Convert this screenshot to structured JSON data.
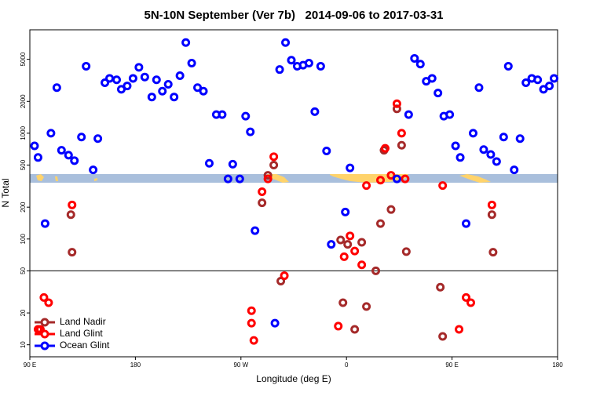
{
  "chart_data": {
    "type": "scatter",
    "title": "5N-10N September (Ver 7b)   2014-09-06 to 2017-03-31",
    "x_label": "Longitude (deg E)",
    "y_label": "N Total",
    "xlim": [
      -270,
      180
    ],
    "xticks": [
      {
        "value": -270,
        "label": "90 E"
      },
      {
        "value": -180,
        "label": "180"
      },
      {
        "value": -90,
        "label": "90 W"
      },
      0,
      {
        "value": 90,
        "label": "90 E"
      },
      180
    ],
    "ylim": [
      7.7,
      9500
    ],
    "log_y": true,
    "yticks": [
      10,
      20,
      50,
      100,
      200,
      500,
      1000,
      2000,
      5000
    ],
    "hline": 50,
    "legend": "lower left",
    "series": [
      {
        "name": "Land Nadir",
        "color": "#a52a2a",
        "x": [
          -235,
          -234,
          -72,
          -67,
          -62,
          -56,
          -5,
          -3,
          1,
          7,
          13,
          17,
          25,
          29,
          38,
          32,
          47,
          51,
          80,
          82,
          124,
          125,
          43
        ],
        "values": [
          170,
          75,
          220,
          400,
          500,
          40,
          98,
          25,
          89,
          14,
          93,
          23,
          50,
          140,
          190,
          690,
          770,
          76,
          35,
          12,
          170,
          75,
          1700
        ]
      },
      {
        "name": "Land Glint",
        "color": "#ff0000",
        "x": [
          -258,
          -254,
          -263,
          -261,
          -234,
          -81,
          -81,
          -79,
          -72,
          -67,
          -62,
          -53,
          -7,
          -2,
          3,
          7,
          13,
          17,
          29,
          33,
          38,
          43,
          47,
          50,
          82,
          96,
          102,
          106,
          124
        ],
        "values": [
          28,
          25,
          14,
          14,
          210,
          21,
          16,
          11,
          280,
          370,
          600,
          45,
          15,
          68,
          107,
          77,
          57,
          320,
          360,
          720,
          400,
          1900,
          1000,
          370,
          320,
          14,
          28,
          25,
          210
        ]
      },
      {
        "name": "Ocean Glint",
        "color": "#0000ff",
        "x": [
          -266,
          -263,
          -257,
          -252,
          -247,
          -243,
          -237,
          -232,
          -226,
          -222,
          -216,
          -212,
          -206,
          -202,
          -196,
          -192,
          -187,
          -182,
          -177,
          -172,
          -166,
          -162,
          -157,
          -152,
          -147,
          -142,
          -137,
          -132,
          -127,
          -122,
          -117,
          -111,
          -106,
          -101,
          -97,
          -91,
          -86,
          -82,
          -78,
          -61,
          -57,
          -52,
          -47,
          -42,
          -37,
          -32,
          -27,
          -22,
          -17,
          -13,
          -1,
          3,
          43,
          53,
          58,
          63,
          68,
          73,
          78,
          83,
          88,
          93,
          97,
          102,
          108,
          113,
          117,
          123,
          128,
          134,
          138,
          143,
          148,
          153,
          158,
          163,
          168,
          173,
          177
        ],
        "values": [
          760,
          590,
          140,
          1000,
          2700,
          690,
          620,
          550,
          920,
          4300,
          450,
          890,
          3000,
          3300,
          3200,
          2600,
          2800,
          3300,
          4200,
          3400,
          2200,
          3200,
          2500,
          2900,
          2200,
          3500,
          7200,
          4600,
          2700,
          2500,
          520,
          1500,
          1500,
          370,
          510,
          370,
          1450,
          1030,
          120,
          16,
          4000,
          7200,
          4900,
          4300,
          4400,
          4600,
          1600,
          4300,
          680,
          89,
          180,
          470,
          370,
          1500,
          5100,
          4500,
          3100,
          3300,
          2400,
          1450,
          1500,
          760,
          590,
          140,
          1000,
          2700,
          700,
          630,
          540,
          920,
          4300,
          450,
          890,
          3000,
          3300,
          3200,
          2600,
          2800,
          3300
        ]
      }
    ]
  }
}
